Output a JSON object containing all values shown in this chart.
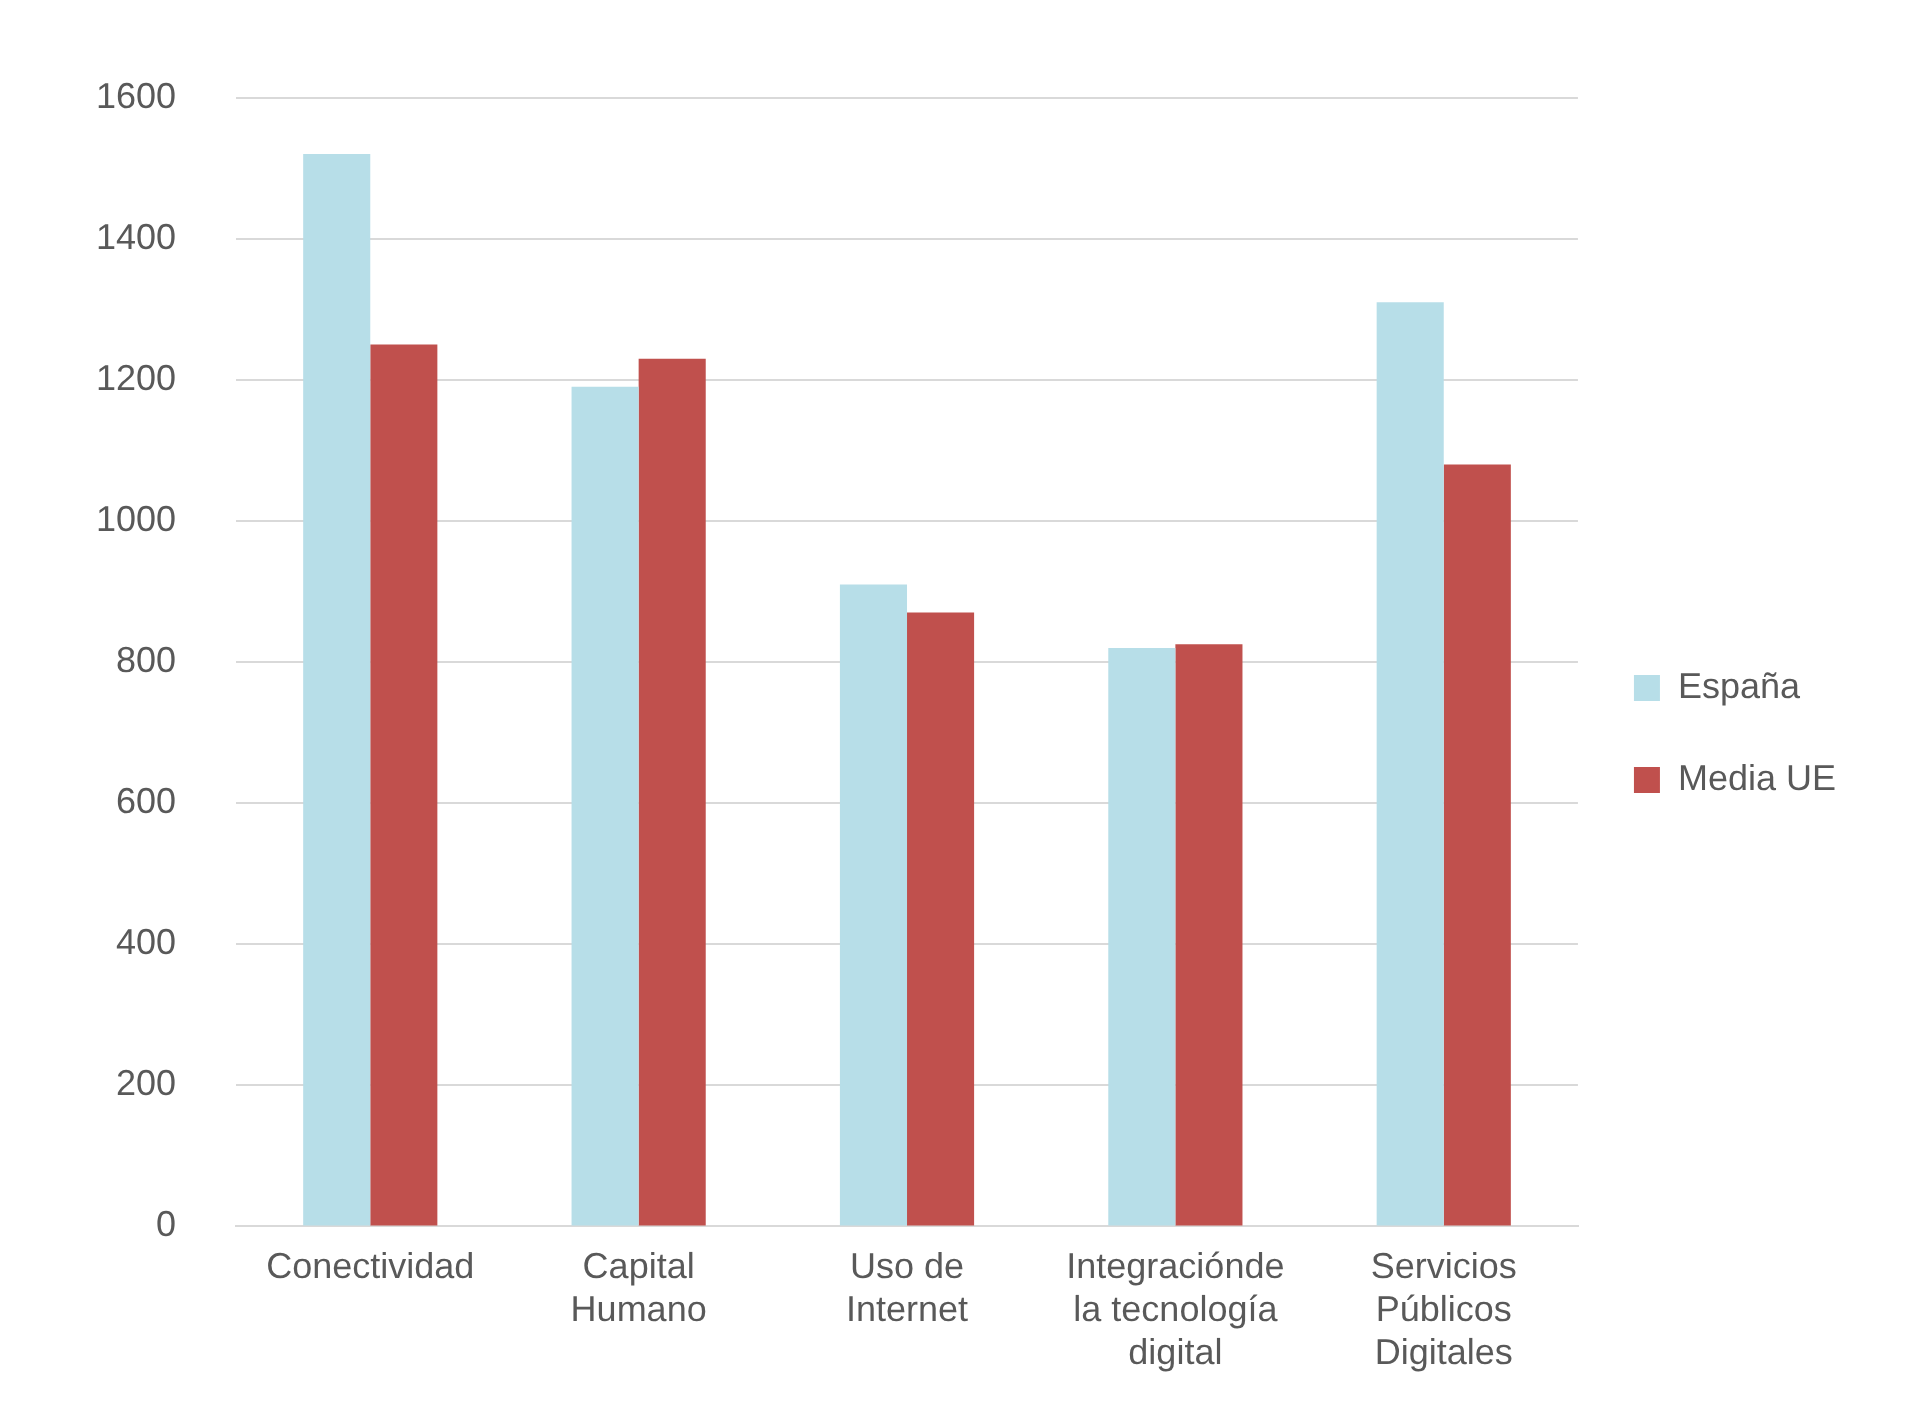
{
  "chart_data": {
    "type": "bar",
    "categories": [
      "Conectividad",
      "Capital Humano",
      "Uso de Internet",
      "Integraciónde la tecnología digital",
      "Servicios Públicos Digitales"
    ],
    "series": [
      {
        "name": "España",
        "color": "#b7dee8",
        "values": [
          1520,
          1190,
          910,
          820,
          1310
        ]
      },
      {
        "name": "Media UE",
        "color": "#c0504d",
        "values": [
          1250,
          1230,
          870,
          825,
          1080
        ]
      }
    ],
    "ylim": [
      0,
      1600
    ],
    "yticks": [
      0,
      200,
      400,
      600,
      800,
      1000,
      1200,
      1400,
      1600
    ],
    "grid": "y",
    "legend": "right"
  }
}
